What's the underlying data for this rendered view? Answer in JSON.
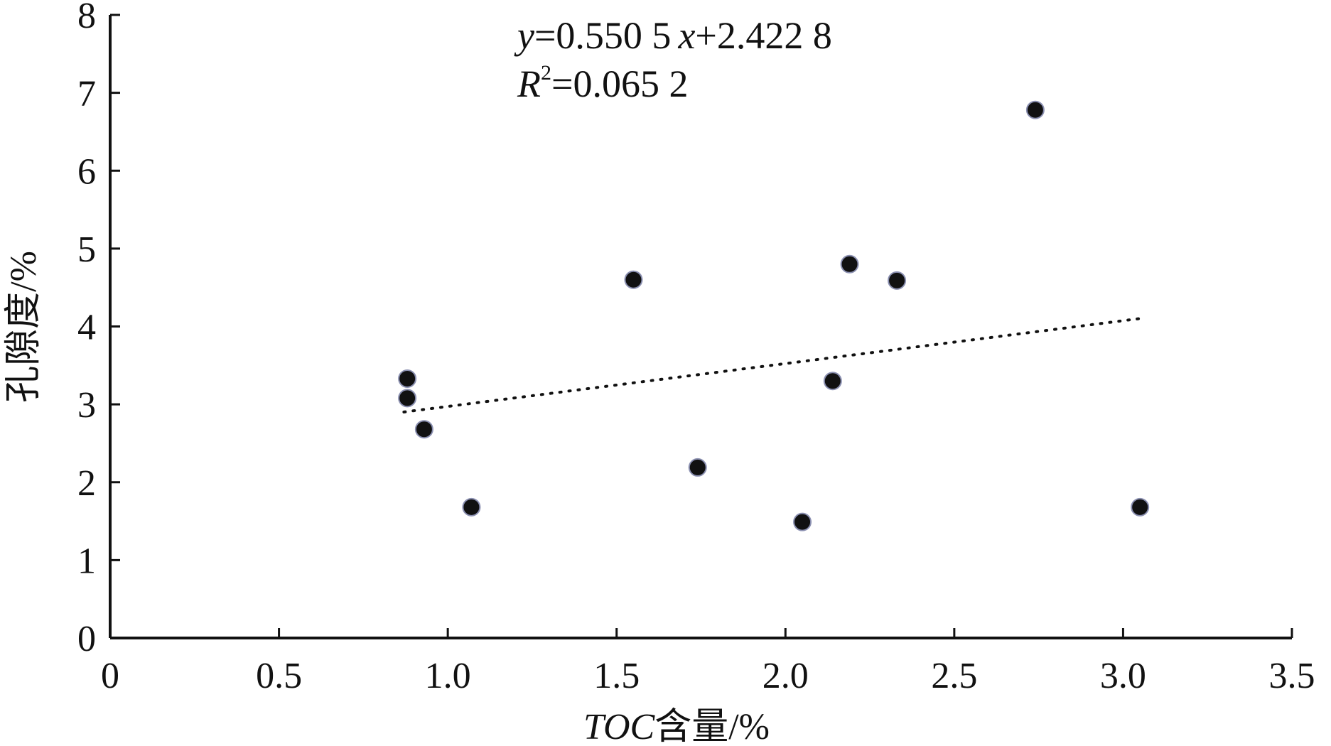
{
  "chart_data": {
    "type": "scatter",
    "title": "",
    "xlabel": "TOC含量/%",
    "xlabel_parts": {
      "var": "TOC",
      "rest": "含量/%"
    },
    "ylabel": "孔隙度/%",
    "xlim": [
      0,
      3.5
    ],
    "ylim": [
      0,
      8
    ],
    "xticks": [
      0,
      0.5,
      1.0,
      1.5,
      2.0,
      2.5,
      3.0,
      3.5
    ],
    "xtick_labels": [
      "0",
      "0.5",
      "1.0",
      "1.5",
      "2.0",
      "2.5",
      "3.0",
      "3.5"
    ],
    "yticks": [
      0,
      1,
      2,
      3,
      4,
      5,
      6,
      7,
      8
    ],
    "ytick_labels": [
      "0",
      "1",
      "2",
      "3",
      "4",
      "5",
      "6",
      "7",
      "8"
    ],
    "grid": false,
    "points": [
      {
        "x": 0.88,
        "y": 3.33
      },
      {
        "x": 0.88,
        "y": 3.08
      },
      {
        "x": 0.93,
        "y": 2.68
      },
      {
        "x": 1.07,
        "y": 1.68
      },
      {
        "x": 1.55,
        "y": 4.6
      },
      {
        "x": 1.74,
        "y": 2.19
      },
      {
        "x": 2.05,
        "y": 1.49
      },
      {
        "x": 2.14,
        "y": 3.3
      },
      {
        "x": 2.19,
        "y": 4.8
      },
      {
        "x": 2.33,
        "y": 4.59
      },
      {
        "x": 2.74,
        "y": 6.78
      },
      {
        "x": 3.05,
        "y": 1.68
      }
    ],
    "trendline": {
      "style": "dotted",
      "slope": 0.5505,
      "intercept": 2.4228,
      "x_range": [
        0.87,
        3.05
      ]
    },
    "annotations": {
      "equation": {
        "y_var": "y",
        "eq_mid": "=0.550 5",
        "x_var": "x",
        "eq_end": "+2.422 8"
      },
      "r2": {
        "base": "R",
        "sup": "2",
        "rest": "=0.065 2"
      }
    }
  }
}
